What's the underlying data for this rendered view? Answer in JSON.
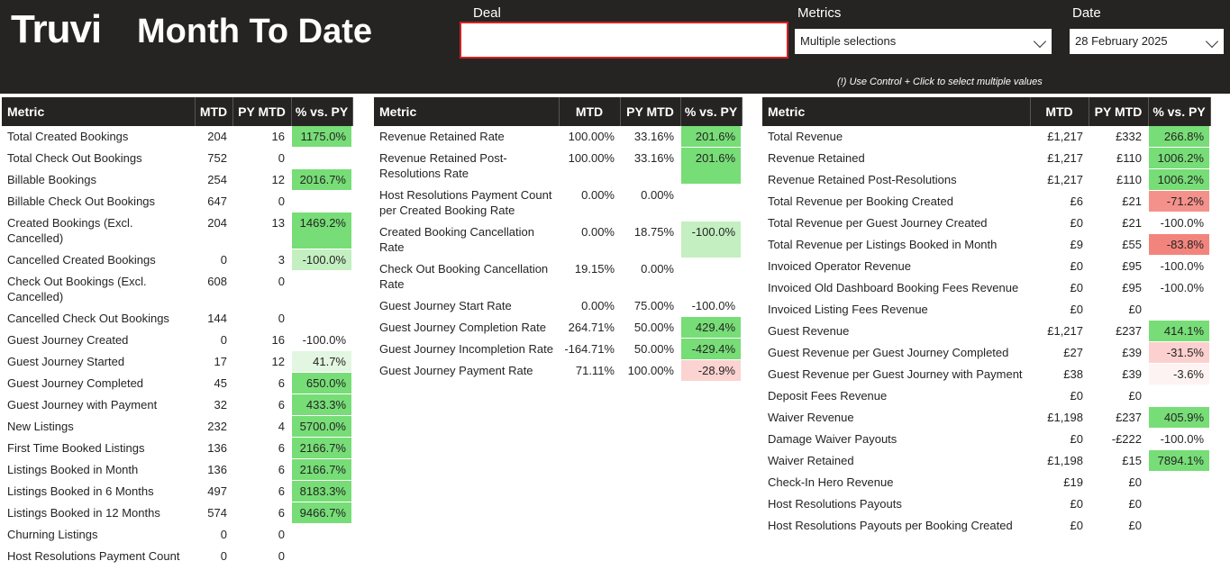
{
  "header": {
    "logo": "Truvi",
    "title": "Month To Date",
    "filters": [
      {
        "label": "Deal",
        "value": null
      },
      {
        "label": "Metrics",
        "value": "Multiple selections"
      },
      {
        "label": "Date",
        "value": "28 February 2025"
      }
    ],
    "note": "(!) Use Control + Click to select multiple values"
  },
  "tables": [
    {
      "columns": [
        "Metric",
        "MTD",
        "PY MTD",
        "% vs. PY"
      ],
      "rows": [
        {
          "cells": [
            "Total Created Bookings",
            "204",
            "16",
            "1175.0%"
          ],
          "color": "#77dd77"
        },
        {
          "cells": [
            "Total Check Out Bookings",
            "752",
            "0",
            null
          ],
          "color": null
        },
        {
          "cells": [
            "Billable Bookings",
            "254",
            "12",
            "2016.7%"
          ],
          "color": "#77dd77"
        },
        {
          "cells": [
            "Billable Check Out Bookings",
            "647",
            "0",
            null
          ],
          "color": null
        },
        {
          "cells": [
            "Created Bookings (Excl. Cancelled)",
            "204",
            "13",
            "1469.2%"
          ],
          "color": "#77dd77"
        },
        {
          "cells": [
            "Cancelled Created Bookings",
            "0",
            "3",
            "-100.0%"
          ],
          "color": "#c3efc1"
        },
        {
          "cells": [
            "Check Out Bookings (Excl. Cancelled)",
            "608",
            "0",
            null
          ],
          "color": null
        },
        {
          "cells": [
            "Cancelled Check Out Bookings",
            "144",
            "0",
            null
          ],
          "color": null
        },
        {
          "cells": [
            "Guest Journey Created",
            "0",
            "16",
            "-100.0%"
          ],
          "color": null
        },
        {
          "cells": [
            "Guest Journey Started",
            "17",
            "12",
            "41.7%"
          ],
          "color": "#e2f6e1"
        },
        {
          "cells": [
            "Guest Journey Completed",
            "45",
            "6",
            "650.0%"
          ],
          "color": "#77dd77"
        },
        {
          "cells": [
            "Guest Journey with Payment",
            "32",
            "6",
            "433.3%"
          ],
          "color": "#77dd77"
        },
        {
          "cells": [
            "New Listings",
            "232",
            "4",
            "5700.0%"
          ],
          "color": "#77dd77"
        },
        {
          "cells": [
            "First Time Booked Listings",
            "136",
            "6",
            "2166.7%"
          ],
          "color": "#77dd77"
        },
        {
          "cells": [
            "Listings Booked in Month",
            "136",
            "6",
            "2166.7%"
          ],
          "color": "#77dd77"
        },
        {
          "cells": [
            "Listings Booked in 6 Months",
            "497",
            "6",
            "8183.3%"
          ],
          "color": "#77dd77"
        },
        {
          "cells": [
            "Listings Booked in 12 Months",
            "574",
            "6",
            "9466.7%"
          ],
          "color": "#77dd77"
        },
        {
          "cells": [
            "Churning Listings",
            "0",
            "0",
            null
          ],
          "color": null
        },
        {
          "cells": [
            "Host Resolutions Payment Count",
            "0",
            "0",
            null
          ],
          "color": null
        }
      ]
    },
    {
      "columns": [
        "Metric",
        "MTD",
        "PY MTD",
        "% vs. PY"
      ],
      "rows": [
        {
          "cells": [
            "Revenue Retained Rate",
            "100.00%",
            "33.16%",
            "201.6%"
          ],
          "color": "#77dd77"
        },
        {
          "cells": [
            "Revenue Retained Post-Resolutions Rate",
            "100.00%",
            "33.16%",
            "201.6%"
          ],
          "color": "#77dd77"
        },
        {
          "cells": [
            "Host Resolutions Payment Count per Created Booking Rate",
            "0.00%",
            "0.00%",
            null
          ],
          "color": null
        },
        {
          "cells": [
            "Created Booking Cancellation Rate",
            "0.00%",
            "18.75%",
            "-100.0%"
          ],
          "color": "#c3efc1"
        },
        {
          "cells": [
            "Check Out Booking Cancellation Rate",
            "19.15%",
            "0.00%",
            null
          ],
          "color": null
        },
        {
          "cells": [
            "Guest Journey Start Rate",
            "0.00%",
            "75.00%",
            "-100.0%"
          ],
          "color": null
        },
        {
          "cells": [
            "Guest Journey Completion Rate",
            "264.71%",
            "50.00%",
            "429.4%"
          ],
          "color": "#77dd77"
        },
        {
          "cells": [
            "Guest Journey Incompletion Rate",
            "-164.71%",
            "50.00%",
            "-429.4%"
          ],
          "color": "#77dd77"
        },
        {
          "cells": [
            "Guest Journey Payment Rate",
            "71.11%",
            "100.00%",
            "-28.9%"
          ],
          "color": "#fbd3d1"
        }
      ]
    },
    {
      "columns": [
        "Metric",
        "MTD",
        "PY MTD",
        "% vs. PY"
      ],
      "rows": [
        {
          "cells": [
            "Total Revenue",
            "£1,217",
            "£332",
            "266.8%"
          ],
          "color": "#77dd77"
        },
        {
          "cells": [
            "Revenue Retained",
            "£1,217",
            "£110",
            "1006.2%"
          ],
          "color": "#77dd77"
        },
        {
          "cells": [
            "Revenue Retained Post-Resolutions",
            "£1,217",
            "£110",
            "1006.2%"
          ],
          "color": "#77dd77"
        },
        {
          "cells": [
            "Total Revenue per Booking Created",
            "£6",
            "£21",
            "-71.2%"
          ],
          "color": "#f4918b"
        },
        {
          "cells": [
            "Total Revenue per Guest Journey Created",
            "£0",
            "£21",
            "-100.0%"
          ],
          "color": null
        },
        {
          "cells": [
            "Total Revenue per Listings Booked in Month",
            "£9",
            "£55",
            "-83.8%"
          ],
          "color": "#f2847d"
        },
        {
          "cells": [
            "Invoiced Operator Revenue",
            "£0",
            "£95",
            "-100.0%"
          ],
          "color": null
        },
        {
          "cells": [
            "Invoiced Old Dashboard Booking Fees Revenue",
            "£0",
            "£95",
            "-100.0%"
          ],
          "color": null
        },
        {
          "cells": [
            "Invoiced Listing Fees Revenue",
            "£0",
            "£0",
            null
          ],
          "color": null
        },
        {
          "cells": [
            "Guest Revenue",
            "£1,217",
            "£237",
            "414.1%"
          ],
          "color": "#77dd77"
        },
        {
          "cells": [
            "Guest Revenue per Guest Journey Completed",
            "£27",
            "£39",
            "-31.5%"
          ],
          "color": "#fbd0ce"
        },
        {
          "cells": [
            "Guest Revenue per Guest Journey with Payment",
            "£38",
            "£39",
            "-3.6%"
          ],
          "color": "#fef3f3"
        },
        {
          "cells": [
            "Deposit Fees Revenue",
            "£0",
            "£0",
            null
          ],
          "color": null
        },
        {
          "cells": [
            "Waiver Revenue",
            "£1,198",
            "£237",
            "405.9%"
          ],
          "color": "#77dd77"
        },
        {
          "cells": [
            "Damage Waiver Payouts",
            "£0",
            "-£222",
            "-100.0%"
          ],
          "color": null
        },
        {
          "cells": [
            "Waiver Retained",
            "£1,198",
            "£15",
            "7894.1%"
          ],
          "color": "#77dd77"
        },
        {
          "cells": [
            "Check-In Hero Revenue",
            "£19",
            "£0",
            null
          ],
          "color": null
        },
        {
          "cells": [
            "Host Resolutions Payouts",
            "£0",
            "£0",
            null
          ],
          "color": null
        },
        {
          "cells": [
            "Host Resolutions Payouts per Booking Created",
            "£0",
            "£0",
            null
          ],
          "color": null
        }
      ]
    }
  ]
}
